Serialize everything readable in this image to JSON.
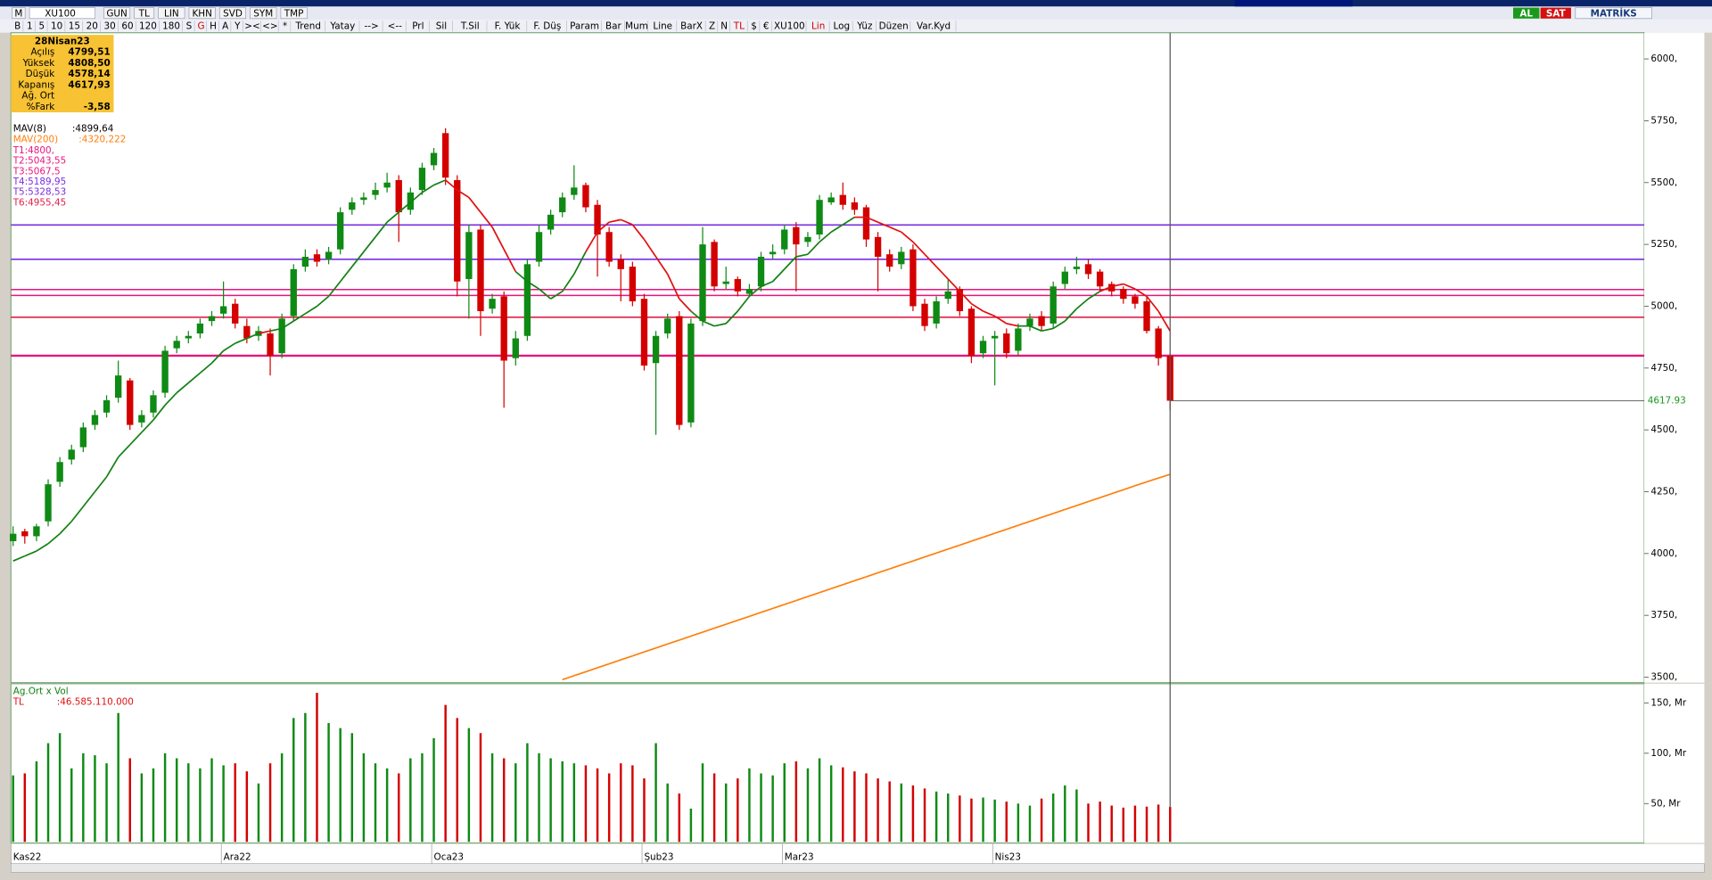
{
  "toolbar": {
    "row1": [
      "M",
      "XU100",
      "GUN",
      "TL",
      "LIN",
      "KHN",
      "SVD",
      "SYM",
      "TMP"
    ],
    "row2": [
      "B",
      "1",
      "5",
      "10",
      "15",
      "20",
      "30",
      "60",
      "120",
      "180",
      "S",
      "G",
      "H",
      "A",
      "Y",
      "><",
      "<>",
      "*",
      "Trend",
      "Yatay",
      "-->",
      "<--",
      "Prl",
      "Sil",
      "T.Sil",
      "F. Yük",
      "F. Düş",
      "Param",
      "Bar",
      "Mum",
      "Line",
      "BarX",
      "Z",
      "N",
      "TL",
      "$",
      "€",
      "XU100",
      "Lin",
      "Log",
      "Yüz",
      "Düzen",
      "Var.Kyd"
    ],
    "buttons_right": [
      "AL",
      "SAT"
    ],
    "brand": "MATRİKS"
  },
  "info_box": {
    "date": "28Nisan23",
    "rows": [
      [
        "Açılış",
        "4799,51"
      ],
      [
        "Yüksek",
        "4808,50"
      ],
      [
        "Düşük",
        "4578,14"
      ],
      [
        "Kapanış",
        "4617,93"
      ],
      [
        "Ağ. Ort"
      ],
      [
        "%Fark",
        "-3,58"
      ]
    ]
  },
  "chart_data": [
    {
      "type": "candlestick",
      "categories": [
        "Kas22",
        null,
        null,
        null,
        null,
        null,
        null,
        null,
        null,
        null,
        null,
        null,
        null,
        null,
        null,
        null,
        null,
        null,
        "Ara22",
        null,
        null,
        null,
        null,
        null,
        null,
        null,
        null,
        null,
        null,
        null,
        null,
        null,
        null,
        null,
        null,
        null,
        "Oca23",
        null,
        null,
        null,
        null,
        null,
        null,
        null,
        null,
        null,
        null,
        null,
        null,
        null,
        null,
        null,
        null,
        null,
        "Şub23",
        null,
        null,
        null,
        null,
        null,
        null,
        null,
        null,
        null,
        null,
        null,
        "Mar23",
        null,
        null,
        null,
        null,
        null,
        null,
        null,
        null,
        null,
        null,
        null,
        null,
        null,
        null,
        null,
        null,
        null,
        "Nis23",
        null,
        null,
        null,
        null,
        null,
        null,
        null,
        null,
        null,
        null,
        null,
        null,
        null,
        null,
        null
      ],
      "open": [
        4050,
        4090,
        4070,
        4130,
        4290,
        4380,
        4430,
        4520,
        4570,
        4630,
        4700,
        4530,
        4570,
        4650,
        4830,
        4870,
        4890,
        4940,
        4970,
        5010,
        4920,
        4880,
        4890,
        4810,
        4960,
        5160,
        5210,
        5190,
        5230,
        5390,
        5430,
        5450,
        5480,
        5510,
        5390,
        5470,
        5570,
        5700,
        5510,
        5110,
        5310,
        4990,
        5040,
        4790,
        4880,
        5180,
        5310,
        5380,
        5450,
        5490,
        5410,
        5300,
        5190,
        5160,
        5030,
        4770,
        4890,
        4960,
        4530,
        4940,
        5260,
        5090,
        5110,
        5050,
        5080,
        5210,
        5230,
        5320,
        5260,
        5290,
        5420,
        5450,
        5420,
        5400,
        5280,
        5210,
        5170,
        5230,
        5010,
        4930,
        5030,
        5070,
        4990,
        4810,
        4870,
        4890,
        4820,
        4920,
        4960,
        4930,
        5090,
        5150,
        5170,
        5140,
        5090,
        5070,
        5040,
        5020,
        4910,
        4799.51
      ],
      "high": [
        4110,
        4100,
        4120,
        4300,
        4390,
        4440,
        4530,
        4580,
        4640,
        4780,
        4710,
        4580,
        4660,
        4840,
        4880,
        4900,
        4950,
        4980,
        5100,
        5030,
        4950,
        4920,
        4910,
        4970,
        5170,
        5230,
        5230,
        5240,
        5400,
        5440,
        5460,
        5500,
        5540,
        5530,
        5480,
        5580,
        5640,
        5720,
        5530,
        5330,
        5330,
        5050,
        5060,
        4900,
        5190,
        5330,
        5390,
        5460,
        5570,
        5500,
        5430,
        5320,
        5210,
        5180,
        5050,
        4900,
        4970,
        4980,
        4950,
        5320,
        5270,
        5160,
        5120,
        5090,
        5220,
        5250,
        5330,
        5340,
        5300,
        5450,
        5460,
        5500,
        5440,
        5410,
        5300,
        5230,
        5240,
        5250,
        5030,
        5040,
        5110,
        5080,
        5000,
        4880,
        4900,
        4910,
        4930,
        4970,
        4980,
        5100,
        5160,
        5200,
        5190,
        5150,
        5100,
        5080,
        5050,
        5040,
        4920,
        4808.5
      ],
      "low": [
        4030,
        4040,
        4050,
        4110,
        4270,
        4360,
        4410,
        4500,
        4550,
        4610,
        4500,
        4510,
        4550,
        4630,
        4810,
        4850,
        4870,
        4920,
        4950,
        4910,
        4850,
        4860,
        4720,
        4790,
        4940,
        5140,
        5160,
        5170,
        5210,
        5370,
        5410,
        5430,
        5460,
        5260,
        5370,
        5450,
        5550,
        5490,
        5040,
        4950,
        4880,
        4970,
        4590,
        4760,
        4860,
        5160,
        5290,
        5360,
        5430,
        5380,
        5120,
        5160,
        5020,
        5000,
        4740,
        4480,
        4870,
        4500,
        4510,
        4920,
        5060,
        5070,
        5040,
        5040,
        5060,
        5190,
        5210,
        5060,
        5240,
        5270,
        5410,
        5390,
        5370,
        5240,
        5060,
        5140,
        5150,
        4980,
        4900,
        4910,
        5010,
        4960,
        4770,
        4790,
        4680,
        4790,
        4800,
        4900,
        4900,
        4910,
        5070,
        5130,
        5110,
        5060,
        5040,
        5010,
        4990,
        4890,
        4760,
        4578.14
      ],
      "close": [
        4080,
        4070,
        4110,
        4280,
        4370,
        4420,
        4510,
        4560,
        4620,
        4720,
        4520,
        4560,
        4640,
        4820,
        4860,
        4880,
        4930,
        4960,
        5000,
        4930,
        4870,
        4900,
        4800,
        4950,
        5150,
        5200,
        5180,
        5220,
        5380,
        5420,
        5440,
        5470,
        5500,
        5380,
        5460,
        5560,
        5620,
        5520,
        5100,
        5300,
        4980,
        5030,
        4780,
        4870,
        5170,
        5300,
        5370,
        5440,
        5480,
        5400,
        5290,
        5180,
        5150,
        5020,
        4760,
        4880,
        4950,
        4520,
        4930,
        5250,
        5080,
        5100,
        5060,
        5070,
        5200,
        5220,
        5310,
        5250,
        5280,
        5430,
        5440,
        5410,
        5390,
        5270,
        5200,
        5160,
        5220,
        5000,
        4920,
        5020,
        5060,
        4980,
        4800,
        4860,
        4880,
        4810,
        4910,
        4950,
        4920,
        5080,
        5140,
        5160,
        5130,
        5080,
        5060,
        5030,
        5010,
        4900,
        4790,
        4617.93
      ],
      "up_color": "#0f8a14",
      "down_color": "#d40000",
      "lines": [
        {
          "name": "MAV(8)",
          "value_label": ":4899,64",
          "color": "#000000",
          "up_color": "#138013",
          "down_color": "#e01010",
          "values": [
            3970,
            3990,
            4010,
            4040,
            4080,
            4130,
            4190,
            4250,
            4310,
            4390,
            4440,
            4490,
            4540,
            4600,
            4650,
            4690,
            4730,
            4770,
            4820,
            4850,
            4870,
            4890,
            4900,
            4910,
            4940,
            4970,
            5000,
            5040,
            5100,
            5160,
            5220,
            5280,
            5340,
            5380,
            5420,
            5460,
            5490,
            5510,
            5470,
            5440,
            5380,
            5320,
            5230,
            5140,
            5100,
            5070,
            5030,
            5060,
            5130,
            5220,
            5300,
            5340,
            5350,
            5330,
            5270,
            5200,
            5130,
            5030,
            4980,
            4940,
            4920,
            4930,
            4980,
            5040,
            5080,
            5100,
            5150,
            5200,
            5210,
            5260,
            5300,
            5330,
            5360,
            5360,
            5340,
            5320,
            5300,
            5260,
            5210,
            5160,
            5110,
            5060,
            5010,
            4980,
            4960,
            4930,
            4920,
            4920,
            4900,
            4910,
            4940,
            4990,
            5030,
            5060,
            5080,
            5090,
            5070,
            5040,
            4980,
            4899.64
          ]
        },
        {
          "name": "MAV(200)",
          "value_label": ":4320,222",
          "color": "#ff7f0e",
          "values": [
            null,
            null,
            null,
            null,
            null,
            null,
            null,
            null,
            null,
            null,
            null,
            null,
            null,
            null,
            null,
            null,
            null,
            null,
            null,
            null,
            null,
            null,
            null,
            null,
            null,
            null,
            null,
            null,
            null,
            null,
            null,
            null,
            null,
            null,
            null,
            null,
            null,
            null,
            null,
            null,
            null,
            null,
            null,
            null,
            null,
            null,
            null,
            3490,
            3506,
            3522,
            3538,
            3554,
            3570,
            3586,
            3602,
            3618,
            3634,
            3650,
            3666,
            3682,
            3698,
            3714,
            3730,
            3746,
            3762,
            3778,
            3794,
            3810,
            3826,
            3842,
            3858,
            3874,
            3890,
            3906,
            3922,
            3938,
            3954,
            3970,
            3986,
            4002,
            4018,
            4034,
            4050,
            4066,
            4082,
            4098,
            4114,
            4130,
            4146,
            4162,
            4178,
            4194,
            4210,
            4226,
            4242,
            4258,
            4274,
            4290,
            4305,
            4320.222
          ]
        }
      ],
      "levels": [
        {
          "label": "T1:4800,",
          "value": 4800,
          "color": "#e8157f"
        },
        {
          "label": "T2:5043,55",
          "value": 5043.55,
          "color": "#e8157f"
        },
        {
          "label": "T3:5067,5",
          "value": 5067.5,
          "color": "#e8157f"
        },
        {
          "label": "T4:5189,95",
          "value": 5189.95,
          "color": "#7a2ee0"
        },
        {
          "label": "T5:5328,53",
          "value": 5328.53,
          "color": "#7a2ee0"
        },
        {
          "label": "T6:4955,45",
          "value": 4955.45,
          "color": "#e0204a"
        }
      ],
      "last_price": {
        "value": 4617.93,
        "label": "4617.93"
      },
      "ylim": [
        3478,
        6106
      ],
      "yticks": [
        {
          "value": 3500,
          "label": "3500,"
        },
        {
          "value": 3750,
          "label": "3750,"
        },
        {
          "value": 4000,
          "label": "4000,"
        },
        {
          "value": 4250,
          "label": "4250,"
        },
        {
          "value": 4500,
          "label": "4500,"
        },
        {
          "value": 4750,
          "label": "4750,"
        },
        {
          "value": 5000,
          "label": "5000,"
        },
        {
          "value": 5250,
          "label": "5250,"
        },
        {
          "value": 5500,
          "label": "5500,"
        },
        {
          "value": 5750,
          "label": "5750,"
        },
        {
          "value": 6000,
          "label": "6000,"
        }
      ]
    },
    {
      "type": "bar",
      "title": "Ag.Ort x Vol",
      "legend": "TL",
      "value_label": ":46.585.110.000",
      "values": [
        78,
        80,
        92,
        110,
        120,
        85,
        100,
        98,
        90,
        140,
        95,
        80,
        85,
        100,
        95,
        90,
        85,
        95,
        88,
        90,
        82,
        70,
        90,
        100,
        135,
        140,
        160,
        130,
        125,
        120,
        100,
        90,
        85,
        80,
        95,
        100,
        115,
        148,
        135,
        125,
        120,
        100,
        95,
        90,
        110,
        100,
        95,
        92,
        90,
        88,
        85,
        80,
        90,
        88,
        75,
        110,
        70,
        60,
        45,
        90,
        80,
        70,
        75,
        85,
        80,
        78,
        90,
        92,
        85,
        95,
        88,
        86,
        82,
        80,
        75,
        72,
        70,
        68,
        65,
        62,
        60,
        58,
        55,
        56,
        54,
        52,
        50,
        48,
        55,
        60,
        68,
        64,
        50,
        52,
        48,
        46,
        48,
        47,
        49,
        46.58511
      ],
      "ylim": [
        12,
        168
      ],
      "yticks": [
        {
          "value": 50,
          "label": "50, Mr"
        },
        {
          "value": 100,
          "label": "100, Mr"
        },
        {
          "value": 150,
          "label": "150, Mr"
        }
      ]
    }
  ]
}
